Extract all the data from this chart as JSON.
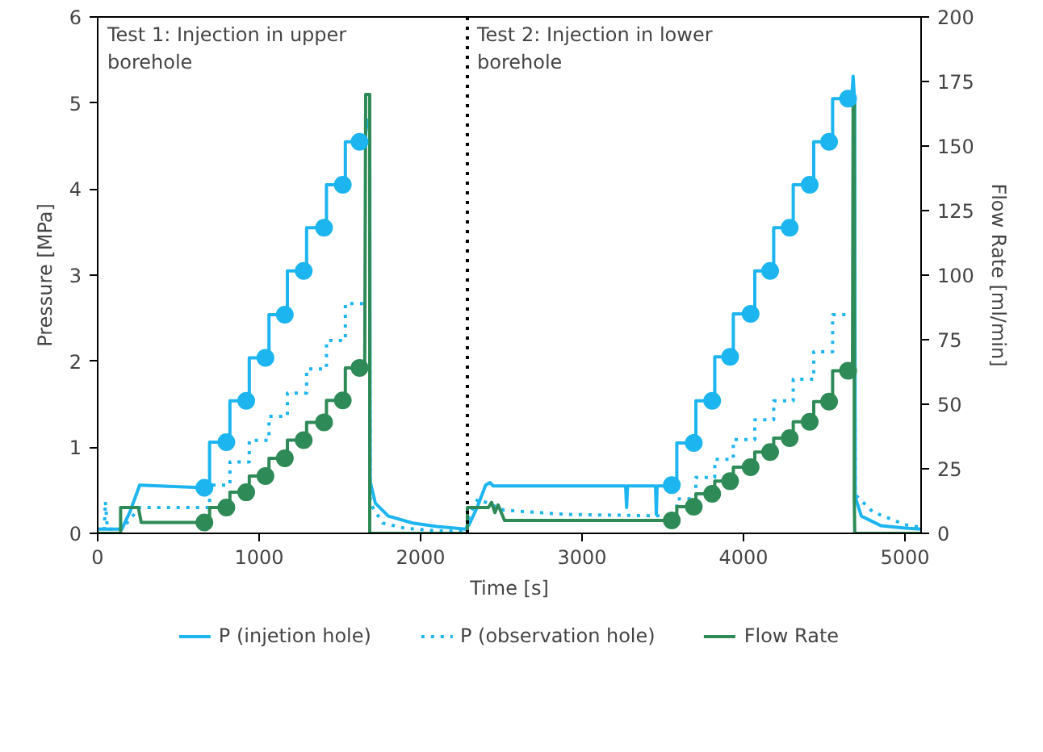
{
  "chart_data": {
    "type": "line",
    "xlabel": "Time [s]",
    "ylabel": "Pressure [MPa]",
    "y2label": "Flow Rate [ml/min]",
    "annotations": [
      "Test 1: Injection in upper\n borehole",
      "Test 2: Injection in lower\n borehole"
    ],
    "xlim": [
      0,
      5100
    ],
    "xticks": [
      0,
      1000,
      2000,
      3000,
      4000,
      5000
    ],
    "ylim": [
      0,
      6
    ],
    "yticks": [
      0,
      1,
      2,
      3,
      4,
      5,
      6
    ],
    "y2lim": [
      0,
      200
    ],
    "y2ticks": [
      0,
      25,
      50,
      75,
      100,
      125,
      150,
      175,
      200
    ],
    "grid": false,
    "legend": "bottom",
    "ref_lines": [
      {
        "axis": "x",
        "value": 2290,
        "color": "#000000",
        "line_style": "dotted"
      }
    ],
    "series": [
      {
        "name": "P (injetion hole)",
        "color": "#1cb5ef",
        "line_style": "solid",
        "x": [
          0,
          150,
          200,
          260,
          661,
          693,
          693,
          819,
          819,
          939,
          939,
          1061,
          1061,
          1175,
          1175,
          1294,
          1294,
          1417,
          1417,
          1534,
          1534,
          1654,
          1670,
          1685,
          1688,
          1720,
          1800,
          1950,
          2100,
          2280,
          2300,
          2350,
          2403,
          2430,
          2450,
          3270,
          3276,
          3282,
          3455,
          3460,
          3465,
          3556,
          3587,
          3587,
          3705,
          3705,
          3822,
          3822,
          3937,
          3937,
          4070,
          4070,
          4187,
          4187,
          4308,
          4308,
          4435,
          4435,
          4552,
          4552,
          4670,
          4679,
          4689,
          4692,
          4730,
          4850,
          5000,
          5100
        ],
        "values": [
          0.05,
          0.05,
          0.25,
          0.56,
          0.53,
          0.53,
          1.06,
          1.06,
          1.54,
          1.54,
          2.04,
          2.04,
          2.54,
          2.54,
          3.05,
          3.05,
          3.55,
          3.55,
          4.05,
          4.05,
          4.55,
          4.55,
          4.8,
          4.8,
          0.6,
          0.35,
          0.2,
          0.12,
          0.08,
          0.05,
          0.1,
          0.3,
          0.56,
          0.59,
          0.55,
          0.55,
          0.3,
          0.55,
          0.55,
          0.22,
          0.55,
          0.55,
          0.55,
          1.05,
          1.05,
          1.54,
          1.54,
          2.05,
          2.05,
          2.55,
          2.55,
          3.05,
          3.05,
          3.55,
          3.55,
          4.05,
          4.05,
          4.55,
          4.55,
          5.05,
          5.05,
          5.31,
          5.0,
          0.42,
          0.2,
          0.09,
          0.06,
          0.05
        ]
      },
      {
        "name": "P (observation hole)",
        "color": "#1cb5ef",
        "line_style": "dotted",
        "x": [
          0,
          40,
          48,
          60,
          150,
          260,
          693,
          693,
          819,
          819,
          939,
          939,
          1061,
          1061,
          1175,
          1175,
          1294,
          1294,
          1417,
          1417,
          1534,
          1534,
          1685,
          1688,
          1765,
          1900,
          2100,
          2280,
          2300,
          2355,
          2514,
          2895,
          3587,
          3587,
          3705,
          3705,
          3822,
          3822,
          3937,
          3937,
          4070,
          4070,
          4187,
          4187,
          4308,
          4308,
          4435,
          4435,
          4552,
          4552,
          4689,
          4692,
          4800,
          5000,
          5100
        ],
        "values": [
          0,
          0,
          0.37,
          0.05,
          0.05,
          0.3,
          0.3,
          0.56,
          0.56,
          0.83,
          0.83,
          1.08,
          1.08,
          1.36,
          1.36,
          1.63,
          1.63,
          1.91,
          1.91,
          2.24,
          2.24,
          2.67,
          2.67,
          0.35,
          0.12,
          0.06,
          0.03,
          0.02,
          0.2,
          0.4,
          0.27,
          0.22,
          0.2,
          0.4,
          0.4,
          0.65,
          0.65,
          0.86,
          0.86,
          1.09,
          1.09,
          1.32,
          1.32,
          1.54,
          1.54,
          1.79,
          1.79,
          2.11,
          2.11,
          2.54,
          2.54,
          0.45,
          0.25,
          0.1,
          0.07
        ]
      },
      {
        "name": "Flow Rate",
        "axis": "y2",
        "color": "#2e8b57",
        "line_style": "solid",
        "x": [
          0,
          142,
          142,
          252,
          270,
          693,
          693,
          819,
          819,
          939,
          939,
          1061,
          1061,
          1175,
          1175,
          1294,
          1294,
          1417,
          1417,
          1534,
          1534,
          1654,
          1660,
          1685,
          1685,
          2290,
          2290,
          2420,
          2440,
          2460,
          2480,
          2520,
          3587,
          3587,
          3705,
          3705,
          3822,
          3822,
          3937,
          3937,
          4070,
          4070,
          4187,
          4187,
          4308,
          4308,
          4435,
          4435,
          4552,
          4552,
          4675,
          4679,
          4686,
          4686,
          4689,
          5100
        ],
        "values": [
          0,
          0,
          10,
          10,
          4.2,
          4.2,
          10,
          10,
          15.9,
          15.9,
          22.2,
          22.2,
          29.1,
          29.1,
          36.1,
          36.1,
          43,
          43,
          51.5,
          51.5,
          64.1,
          64.1,
          170,
          170,
          0,
          0,
          10,
          10,
          12,
          8,
          11,
          5,
          5,
          10.3,
          10.3,
          15.3,
          15.3,
          20.2,
          20.2,
          25.6,
          25.6,
          31.5,
          31.5,
          36.9,
          36.9,
          43.2,
          43.2,
          51,
          51,
          63,
          63,
          169,
          169,
          14,
          0,
          0
        ]
      },
      {
        "type": "scatter",
        "color": "#1cb5ef",
        "marker": "circle",
        "x": [
          661,
          797,
          920,
          1039,
          1159,
          1276,
          1402,
          1518,
          1622,
          3556,
          3692,
          3806,
          3917,
          4044,
          4165,
          4286,
          4410,
          4530,
          4648
        ],
        "values": [
          0.53,
          1.06,
          1.54,
          2.04,
          2.54,
          3.05,
          3.55,
          4.05,
          4.55,
          0.56,
          1.05,
          1.54,
          2.05,
          2.55,
          3.05,
          3.55,
          4.05,
          4.55,
          5.05
        ]
      },
      {
        "type": "scatter",
        "axis": "y2",
        "color": "#2e8b57",
        "marker": "circle",
        "x": [
          661,
          797,
          920,
          1039,
          1159,
          1276,
          1402,
          1518,
          1622,
          3556,
          3692,
          3806,
          3917,
          4044,
          4165,
          4286,
          4410,
          4530,
          4648
        ],
        "values": [
          4.2,
          10,
          15.9,
          22.2,
          29.1,
          36.1,
          43,
          51.5,
          64.1,
          5,
          10.3,
          15.3,
          20.2,
          25.6,
          31.5,
          36.9,
          43.2,
          51,
          63
        ]
      }
    ]
  }
}
